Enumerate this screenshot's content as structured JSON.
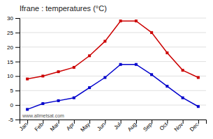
{
  "chart_data": {
    "type": "line",
    "title": "Ifrane : temperatures (°C)",
    "categories": [
      "Jan",
      "Feb",
      "Mar",
      "Apr",
      "May",
      "Jun",
      "Jul",
      "Aug",
      "Sep",
      "Oct",
      "Nov",
      "Dec"
    ],
    "series": [
      {
        "color": "#cc0000",
        "marker": "square",
        "values": [
          9,
          10,
          11.5,
          13,
          17,
          22,
          29,
          29,
          25,
          18,
          12,
          9.5
        ]
      },
      {
        "color": "#0000cc",
        "marker": "square",
        "values": [
          -1.5,
          0.5,
          1.5,
          2.5,
          6,
          9.5,
          14,
          14,
          10.5,
          6.5,
          2.5,
          -0.5
        ]
      }
    ],
    "ylim": [
      -5,
      30
    ],
    "yticks": [
      -5,
      0,
      5,
      10,
      15,
      20,
      25,
      30
    ],
    "grid": true,
    "annotations": [
      "www.allmetsat.com"
    ]
  }
}
